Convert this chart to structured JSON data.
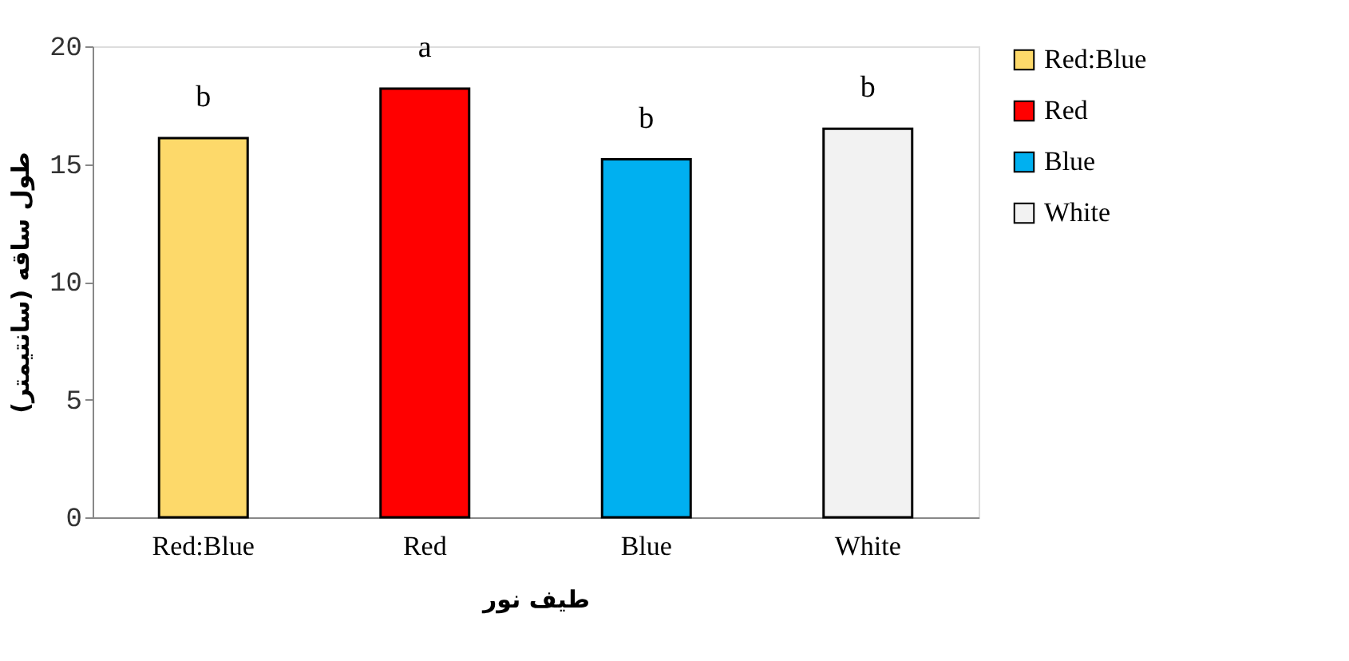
{
  "chart_data": {
    "type": "bar",
    "xlabel": "طيف نور",
    "ylabel": "طول ساقه (سانتيمتر)",
    "categories": [
      "Red:Blue",
      "Red",
      "Blue",
      "White"
    ],
    "series": [
      {
        "name": "Red:Blue",
        "color": "#fdd96a",
        "values": [
          16.1,
          null,
          null,
          null
        ]
      },
      {
        "name": "Red",
        "color": "#ff0000",
        "values": [
          null,
          18.2,
          null,
          null
        ]
      },
      {
        "name": "Blue",
        "color": "#00b0f0",
        "values": [
          null,
          null,
          15.2,
          null
        ]
      },
      {
        "name": "White",
        "color": "#f2f2f2",
        "values": [
          null,
          null,
          null,
          16.5
        ]
      }
    ],
    "ylim": [
      0,
      20
    ],
    "yticks": [
      0,
      5,
      10,
      15,
      20
    ],
    "grid": false,
    "legend": "right",
    "annotations": [
      {
        "text": "b",
        "x": "Red:Blue",
        "y": 16.1
      },
      {
        "text": "a",
        "x": "Red",
        "y": 18.2
      },
      {
        "text": "b",
        "x": "Blue",
        "y": 15.2
      },
      {
        "text": "b",
        "x": "White",
        "y": 16.5
      }
    ]
  }
}
